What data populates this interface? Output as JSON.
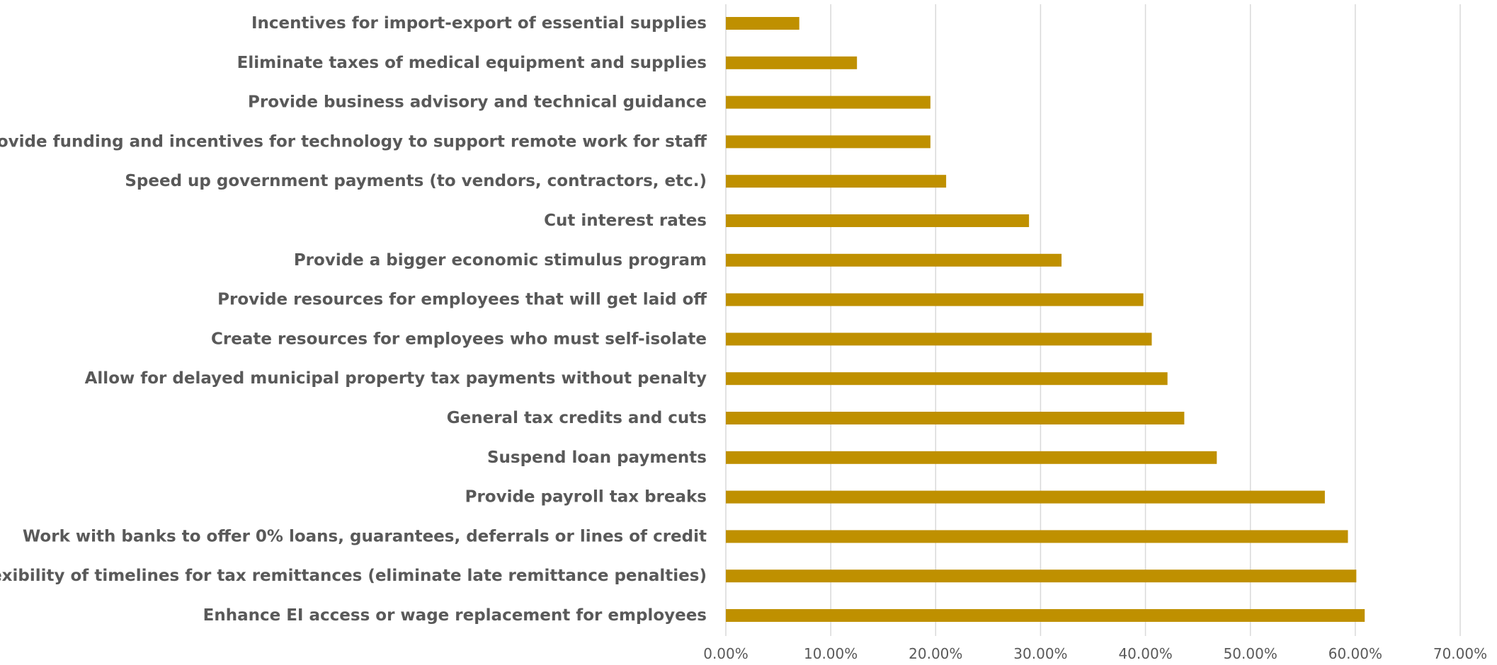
{
  "chart_data": {
    "type": "bar",
    "orientation": "horizontal",
    "categories": [
      "Incentives for import-export of essential supplies",
      "Eliminate taxes of medical equipment and supplies",
      "Provide business advisory and technical guidance",
      "Provide funding and incentives for technology to support remote work for staff",
      "Speed up government payments (to vendors, contractors, etc.)",
      "Cut interest rates",
      "Provide a bigger economic stimulus program",
      "Provide resources for employees that will get laid off",
      "Create resources for employees who must self-isolate",
      "Allow for delayed municipal property tax payments without penalty",
      "General tax credits and cuts",
      "Suspend loan payments",
      "Provide payroll tax breaks",
      "Work with banks to offer 0% loans, guarantees, deferrals or lines of credit",
      "More flexibility of timelines for tax remittances (eliminate late remittance penalties)",
      "Enhance EI access or wage replacement for employees"
    ],
    "values": [
      7.0,
      12.5,
      19.5,
      19.5,
      21.0,
      28.9,
      32.0,
      39.8,
      40.6,
      42.1,
      43.7,
      46.8,
      57.1,
      59.3,
      60.1,
      60.9
    ],
    "xlim": [
      0,
      70
    ],
    "x_ticks": [
      "0.00%",
      "10.00%",
      "20.00%",
      "30.00%",
      "40.00%",
      "50.00%",
      "60.00%",
      "70.00%"
    ],
    "grid": "vertical",
    "legend": "none",
    "bar_color": "#BF9000",
    "title": "",
    "xlabel": "",
    "ylabel": ""
  }
}
